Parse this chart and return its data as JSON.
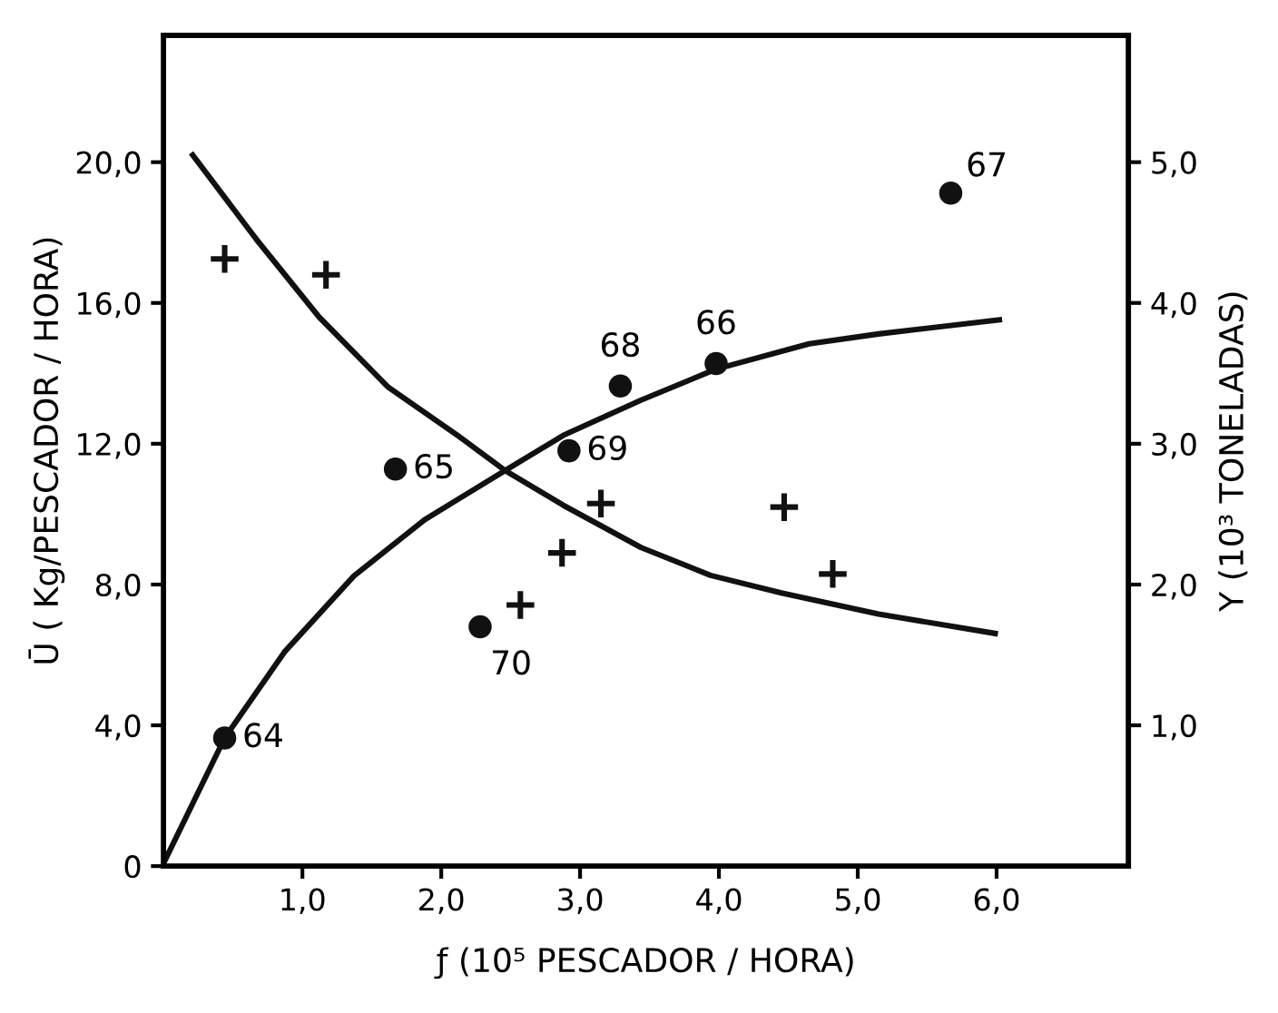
{
  "chart_data": {
    "type": "scatter",
    "xlabel": "ƒ (10⁵ PESCADOR / HORA)",
    "ylabel": "Ū ( Kg/PESCADOR / HORA)",
    "y2label": "Y (10³ TONELADAS)",
    "xlim": [
      0,
      6.95
    ],
    "xticks": [
      {
        "value": 1,
        "label": "1,0"
      },
      {
        "value": 2,
        "label": "2,0"
      },
      {
        "value": 3,
        "label": "3,0"
      },
      {
        "value": 4,
        "label": "4,0"
      },
      {
        "value": 5,
        "label": "5,0"
      },
      {
        "value": 6,
        "label": "6,0"
      }
    ],
    "ylim": [
      0,
      23.6
    ],
    "yticks": [
      0,
      {
        "value": 4,
        "label": "4,0"
      },
      {
        "value": 8,
        "label": "8,0"
      },
      {
        "value": 12,
        "label": "12,0"
      },
      {
        "value": 16,
        "label": "16,0"
      },
      {
        "value": 20,
        "label": "20,0"
      }
    ],
    "y2lim": [
      0,
      5.9
    ],
    "y2ticks": [
      {
        "value": 1,
        "label": "1,0"
      },
      {
        "value": 2,
        "label": "2,0"
      },
      {
        "value": 3,
        "label": "3,0"
      },
      {
        "value": 4,
        "label": "4,0"
      },
      {
        "value": 5,
        "label": "5,0"
      }
    ],
    "grid": false,
    "legend": false,
    "annotations": [
      {
        "text": "64",
        "x": 0.44,
        "y": 3.64
      },
      {
        "text": "65",
        "x": 1.67,
        "y": 11.28
      },
      {
        "text": "70",
        "x": 2.28,
        "y": 6.8
      },
      {
        "text": "69",
        "x": 2.92,
        "y": 11.8
      },
      {
        "text": "68",
        "x": 3.29,
        "y": 13.64
      },
      {
        "text": "66",
        "x": 3.98,
        "y": 14.28
      },
      {
        "text": "67",
        "x": 5.67,
        "y": 19.12
      }
    ],
    "series": [
      {
        "type": "scatter",
        "axis": "y2",
        "color": "#111111",
        "marker": "circle",
        "x": [
          0.44,
          1.67,
          2.28,
          2.92,
          3.29,
          3.98,
          5.67
        ],
        "values": [
          0.91,
          2.82,
          1.7,
          2.95,
          3.41,
          3.57,
          4.78
        ]
      },
      {
        "axis": "y",
        "color": "#111111",
        "marker": "cross",
        "x": [
          0.44,
          1.17,
          2.57,
          2.87,
          3.15,
          4.47,
          4.82
        ],
        "values": [
          17.25,
          16.8,
          7.42,
          8.9,
          10.3,
          10.2,
          8.3
        ]
      },
      {
        "type": "line",
        "axis": "y",
        "color": "#111111",
        "marker": "none",
        "line_style": "solid",
        "x": [
          0.21,
          0.67,
          1.12,
          1.62,
          2.13,
          2.46,
          2.88,
          3.44,
          3.94,
          4.45,
          5.15,
          5.99
        ],
        "values": [
          20.2,
          17.8,
          15.6,
          13.6,
          12.2,
          11.24,
          10.25,
          9.05,
          8.26,
          7.76,
          7.16,
          6.61
        ]
      },
      {
        "type": "line",
        "axis": "y2",
        "color": "#111111",
        "marker": "none",
        "line_style": "solid",
        "x": [
          0,
          0.44,
          0.87,
          1.37,
          1.88,
          2.46,
          2.88,
          3.44,
          3.98,
          4.65,
          5.15,
          6.02
        ],
        "values": [
          0.02,
          0.91,
          1.52,
          2.06,
          2.46,
          2.81,
          3.06,
          3.31,
          3.53,
          3.71,
          3.78,
          3.88
        ]
      }
    ]
  }
}
